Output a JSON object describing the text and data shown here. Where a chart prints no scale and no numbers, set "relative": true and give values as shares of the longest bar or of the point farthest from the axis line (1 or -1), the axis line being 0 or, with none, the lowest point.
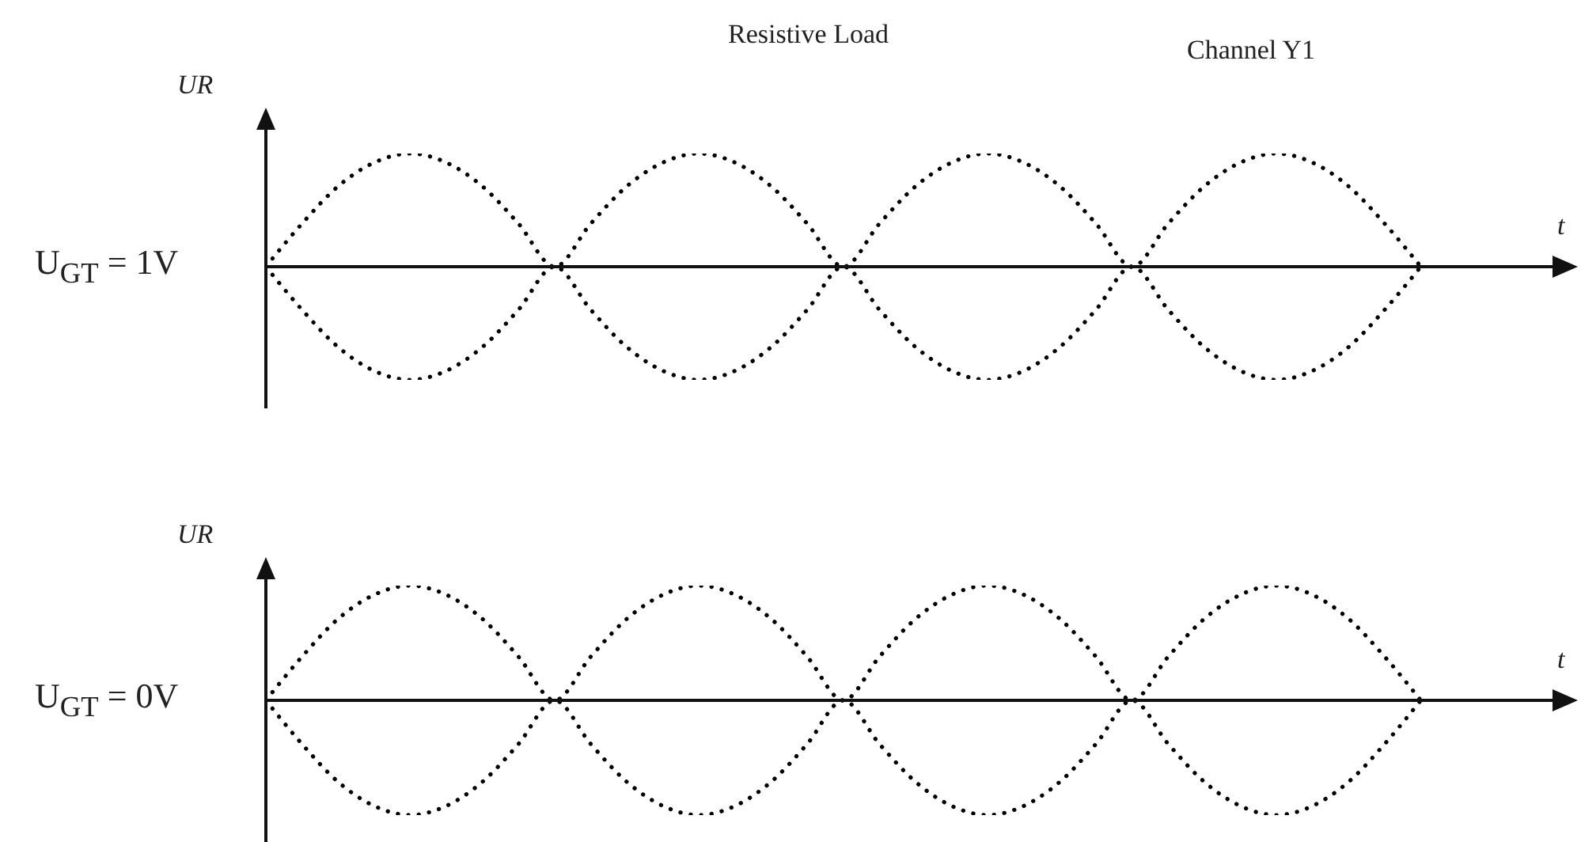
{
  "chart_data": [
    {
      "type": "line",
      "title": "Resistive Load",
      "ylabel": "UR",
      "xlabel": "t",
      "annotations": [
        "Channel Y1",
        "U$_{GT}$ = 1V"
      ],
      "relative": true,
      "marker": "none",
      "line_style": "dotted",
      "categories": [
        null,
        null,
        null,
        null,
        null,
        null,
        null,
        null,
        null,
        null,
        null,
        null,
        null,
        null,
        null,
        null,
        null,
        null,
        null,
        null,
        null,
        null,
        null,
        null,
        null,
        null,
        null,
        null,
        null,
        null,
        null,
        null,
        null,
        null,
        null,
        null,
        null
      ],
      "series": [
        {
          "color": "#000000",
          "values": [
            0,
            0.38,
            0.71,
            0.92,
            1,
            0.92,
            0.71,
            0.38,
            0,
            0.38,
            0.71,
            0.92,
            1,
            0.92,
            0.71,
            0.38,
            0,
            0.38,
            0.71,
            0.92,
            1,
            0.92,
            0.71,
            0.38,
            0,
            0.38,
            0.71,
            0.92,
            1,
            0.92,
            0.71,
            0.38,
            0,
            null,
            null,
            null,
            null
          ]
        },
        {
          "color": "#000000",
          "values": [
            0,
            -0.38,
            -0.71,
            -0.92,
            -1,
            -0.92,
            -0.71,
            -0.38,
            0,
            -0.38,
            -0.71,
            -0.92,
            -1,
            -0.92,
            -0.71,
            -0.38,
            0,
            -0.38,
            -0.71,
            -0.92,
            -1,
            -0.92,
            -0.71,
            -0.38,
            0,
            -0.38,
            -0.71,
            -0.92,
            -1,
            -0.92,
            -0.71,
            -0.38,
            0,
            null,
            null,
            null,
            null
          ]
        }
      ]
    },
    {
      "type": "line",
      "ylabel": "UR",
      "xlabel": "t",
      "annotations": [
        "U$_{GT}$ = 0V"
      ],
      "relative": true,
      "marker": "none",
      "line_style": "dotted",
      "categories": [
        null,
        null,
        null,
        null,
        null,
        null,
        null,
        null,
        null,
        null,
        null,
        null,
        null,
        null,
        null,
        null,
        null,
        null,
        null,
        null,
        null,
        null,
        null,
        null,
        null,
        null,
        null,
        null,
        null,
        null,
        null,
        null,
        null,
        null,
        null,
        null,
        null
      ],
      "series": [
        {
          "color": "#000000",
          "values": [
            0,
            0.38,
            0.71,
            0.92,
            1,
            0.92,
            0.71,
            0.38,
            0,
            0.38,
            0.71,
            0.92,
            1,
            0.92,
            0.71,
            0.38,
            0,
            0.38,
            0.71,
            0.92,
            1,
            0.92,
            0.71,
            0.38,
            0,
            0.38,
            0.71,
            0.92,
            1,
            0.92,
            0.71,
            0.38,
            0,
            null,
            null,
            null,
            null
          ]
        },
        {
          "color": "#000000",
          "values": [
            0,
            -0.38,
            -0.71,
            -0.92,
            -1,
            -0.92,
            -0.71,
            -0.38,
            0,
            -0.38,
            -0.71,
            -0.92,
            -1,
            -0.92,
            -0.71,
            -0.38,
            0,
            -0.38,
            -0.71,
            -0.92,
            -1,
            -0.92,
            -0.71,
            -0.38,
            0,
            -0.38,
            -0.71,
            -0.92,
            -1,
            -0.92,
            -0.71,
            -0.38,
            0,
            null,
            null,
            null,
            null
          ]
        }
      ]
    }
  ]
}
